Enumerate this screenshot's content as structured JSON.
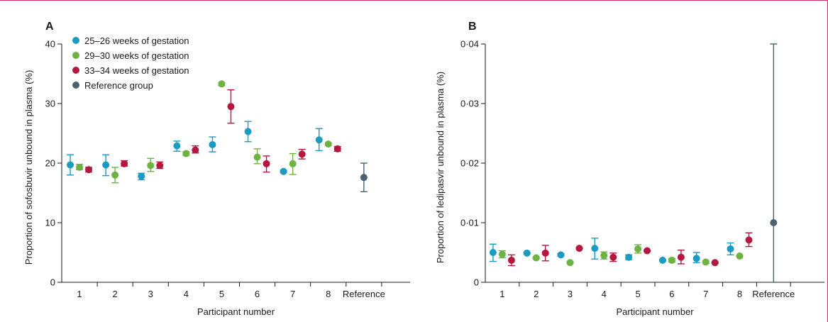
{
  "chart_data": [
    {
      "type": "scatter",
      "panel_label": "A",
      "xlabel": "Participant number",
      "ylabel": "Proportion of sofosbuvir unbound in plasma (%)",
      "categories": [
        "1",
        "2",
        "3",
        "4",
        "5",
        "6",
        "7",
        "8",
        "Reference"
      ],
      "ylim": [
        0,
        40
      ],
      "yticks": [
        "0",
        "10",
        "20",
        "30",
        "40"
      ],
      "legend_position": "top-left",
      "grid": false,
      "series": [
        {
          "name": "25–26 weeks of gestation",
          "color": "#1b9bbf",
          "values": [
            19.7,
            19.7,
            17.8,
            22.9,
            23.1,
            25.3,
            18.6,
            23.9,
            null
          ],
          "err_low": [
            18.0,
            17.9,
            17.2,
            22.0,
            21.9,
            23.6,
            18.4,
            22.1,
            null
          ],
          "err_high": [
            21.4,
            21.4,
            18.3,
            23.7,
            24.4,
            27.0,
            18.8,
            25.8,
            null
          ]
        },
        {
          "name": "29–30 weeks of gestation",
          "color": "#6db33f",
          "values": [
            19.3,
            18.0,
            19.6,
            21.6,
            33.3,
            21.0,
            19.9,
            23.2,
            null
          ],
          "err_low": [
            18.9,
            16.7,
            18.6,
            21.3,
            33.0,
            19.9,
            18.1,
            23.0,
            null
          ],
          "err_high": [
            19.8,
            19.3,
            20.8,
            21.9,
            33.5,
            22.4,
            21.6,
            23.4,
            null
          ]
        },
        {
          "name": "33–34 weeks of gestation",
          "color": "#b5173f",
          "values": [
            18.9,
            19.9,
            19.6,
            22.2,
            29.5,
            19.9,
            21.5,
            22.4,
            null
          ],
          "err_low": [
            18.5,
            19.5,
            19.1,
            21.7,
            26.7,
            18.5,
            20.7,
            22.0,
            null
          ],
          "err_high": [
            19.3,
            20.4,
            20.2,
            22.9,
            32.3,
            21.2,
            22.3,
            22.8,
            null
          ]
        },
        {
          "name": "Reference group",
          "color": "#4a6272",
          "values": [
            null,
            null,
            null,
            null,
            null,
            null,
            null,
            null,
            17.6
          ],
          "err_low": [
            null,
            null,
            null,
            null,
            null,
            null,
            null,
            null,
            15.2
          ],
          "err_high": [
            null,
            null,
            null,
            null,
            null,
            null,
            null,
            null,
            20.0
          ]
        }
      ]
    },
    {
      "type": "scatter",
      "panel_label": "B",
      "xlabel": "Participant number",
      "ylabel": "Proportion of ledipasvir unbound in plasma (%)",
      "categories": [
        "1",
        "2",
        "3",
        "4",
        "5",
        "6",
        "7",
        "8",
        "Reference"
      ],
      "ylim": [
        0,
        0.04
      ],
      "yticks": [
        "0",
        "0·01",
        "0·02",
        "0·03",
        "0·04"
      ],
      "grid": false,
      "series": [
        {
          "name": "25–26 weeks of gestation",
          "color": "#1b9bbf",
          "values": [
            0.005,
            0.0049,
            0.0046,
            0.0057,
            0.0042,
            0.0037,
            0.004,
            0.0056,
            null
          ],
          "err_low": [
            0.0035,
            0.0048,
            0.0044,
            0.0039,
            0.0038,
            0.0036,
            0.0033,
            0.0046,
            null
          ],
          "err_high": [
            0.0064,
            0.005,
            0.0048,
            0.0074,
            0.0046,
            0.0038,
            0.005,
            0.0066,
            null
          ]
        },
        {
          "name": "29–30 weeks of gestation",
          "color": "#6db33f",
          "values": [
            0.0047,
            0.0041,
            0.0033,
            0.0045,
            0.0056,
            0.0037,
            0.0034,
            0.0044,
            null
          ],
          "err_low": [
            0.0041,
            0.004,
            0.0032,
            0.0039,
            0.0049,
            0.0034,
            0.0032,
            0.0043,
            null
          ],
          "err_high": [
            0.0053,
            0.0042,
            0.0034,
            0.0051,
            0.0063,
            0.004,
            0.0036,
            0.0045,
            null
          ]
        },
        {
          "name": "33–34 weeks of gestation",
          "color": "#b5173f",
          "values": [
            0.0037,
            0.0049,
            0.0057,
            0.0042,
            0.0053,
            0.0042,
            0.0033,
            0.0071,
            null
          ],
          "err_low": [
            0.0028,
            0.0036,
            0.0056,
            0.0035,
            0.0052,
            0.0031,
            0.0032,
            0.006,
            null
          ],
          "err_high": [
            0.0046,
            0.0062,
            0.0058,
            0.0049,
            0.0054,
            0.0054,
            0.0034,
            0.0083,
            null
          ]
        },
        {
          "name": "Reference group",
          "color": "#4a6272",
          "values": [
            null,
            null,
            null,
            null,
            null,
            null,
            null,
            null,
            0.01
          ],
          "err_low": [
            null,
            null,
            null,
            null,
            null,
            null,
            null,
            null,
            0.0
          ],
          "err_high": [
            null,
            null,
            null,
            null,
            null,
            null,
            null,
            null,
            0.04
          ]
        }
      ]
    }
  ]
}
